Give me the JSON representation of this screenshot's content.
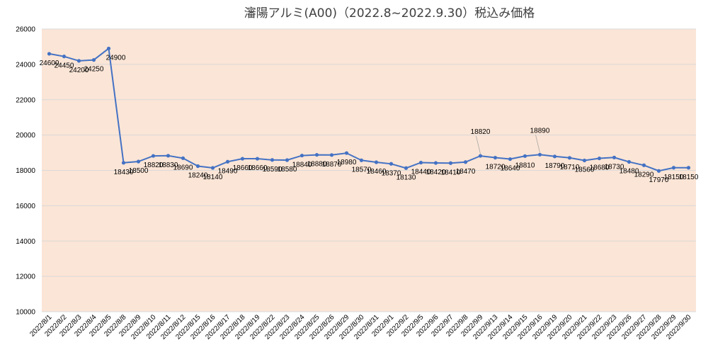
{
  "chart_data": {
    "type": "line",
    "title": "瀋陽アルミ(A00)（2022.8~2022.9.30）税込み価格",
    "xlabel": "",
    "ylabel": "",
    "ylim": [
      10000,
      26000
    ],
    "yticks": [
      10000,
      12000,
      14000,
      16000,
      18000,
      20000,
      22000,
      24000,
      26000
    ],
    "grid": true,
    "legend": "none",
    "plot_background": "#fbe5d6",
    "line_color": "#4472c4",
    "categories": [
      "2022/8/1",
      "2022/8/2",
      "2022/8/3",
      "2022/8/4",
      "2022/8/5",
      "2022/8/8",
      "2022/8/9",
      "2022/8/10",
      "2022/8/11",
      "2022/8/12",
      "2022/8/15",
      "2022/8/16",
      "2022/8/17",
      "2022/8/18",
      "2022/8/19",
      "2022/8/22",
      "2022/8/23",
      "2022/8/24",
      "2022/8/25",
      "2022/8/26",
      "2022/8/29",
      "2022/8/30",
      "2022/8/31",
      "2022/9/1",
      "2022/9/2",
      "2022/9/5",
      "2022/9/6",
      "2022/9/7",
      "2022/9/8",
      "2022/9/9",
      "2022/9/13",
      "2022/9/14",
      "2022/9/15",
      "2022/9/16",
      "2022/9/19",
      "2022/9/20",
      "2022/9/21",
      "2022/9/22",
      "2022/9/23",
      "2022/9/26",
      "2022/9/27",
      "2022/9/28",
      "2022/9/29",
      "2022/9/30"
    ],
    "values": [
      24600,
      24450,
      24200,
      24250,
      24900,
      18430,
      18500,
      18820,
      18830,
      18690,
      18240,
      18140,
      18490,
      18660,
      18660,
      18590,
      18580,
      18840,
      18880,
      18870,
      18980,
      18570,
      18460,
      18370,
      18130,
      18440,
      18420,
      18410,
      18470,
      18820,
      18720,
      18640,
      18810,
      18890,
      18790,
      18710,
      18560,
      18680,
      18730,
      18480,
      18290,
      17970,
      18150,
      18150
    ]
  }
}
